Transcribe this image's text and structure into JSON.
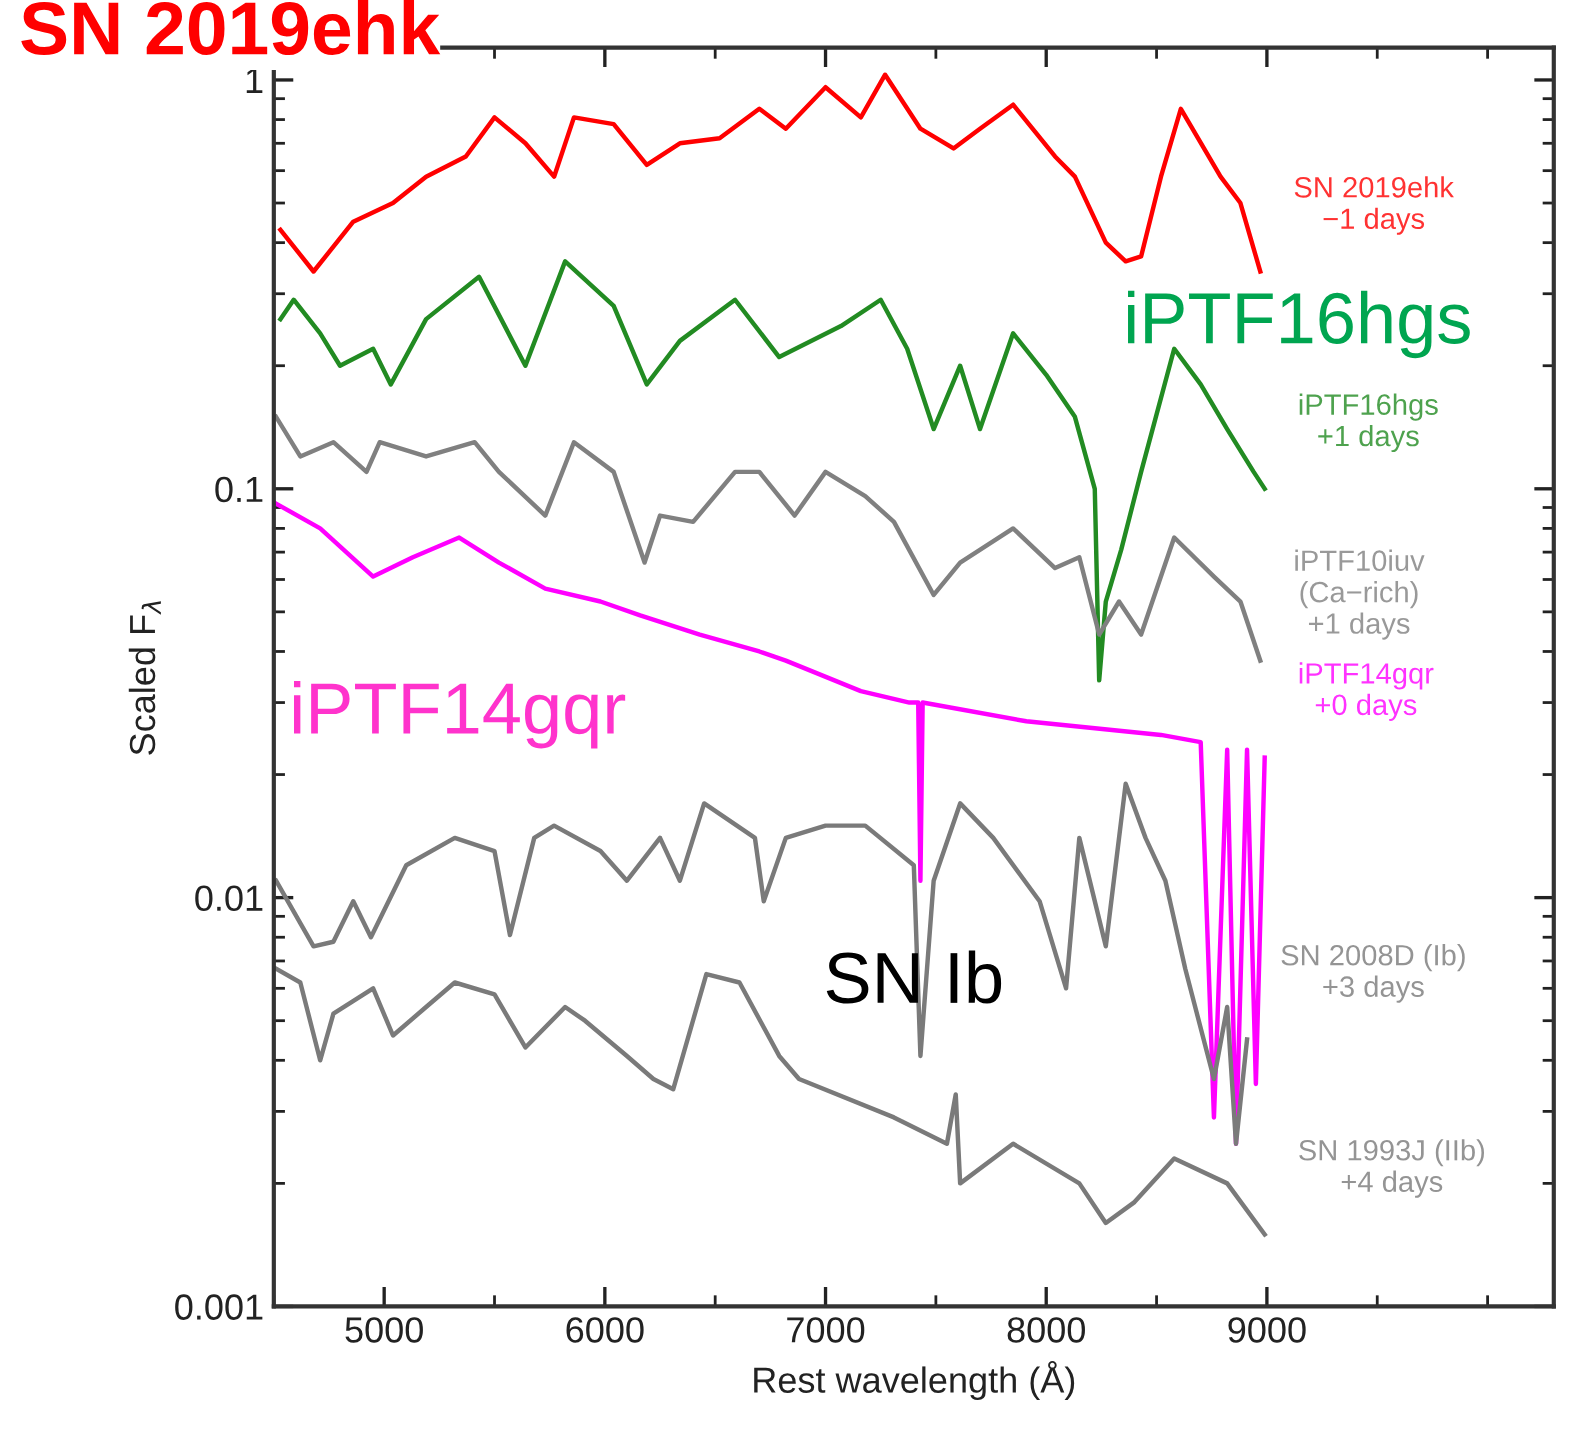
{
  "chart_data": {
    "type": "line",
    "title": "SN 2019ehk",
    "xlabel": "Rest wavelength (Å)",
    "ylabel": "Scaled F$_{λ}$",
    "log": "y",
    "xlim": [
      4500,
      10300
    ],
    "xticks": [
      5000,
      6000,
      7000,
      8000,
      9000
    ],
    "ylim": [
      0.001,
      1.2
    ],
    "yticks": [
      0.001,
      0.01,
      0.1,
      1
    ],
    "grid": false,
    "legend": false,
    "marker": "none",
    "line_style": "solid",
    "series": [
      {
        "name": "SN 2019ehk\n−1 days",
        "color": "#ff0000",
        "x": [
          4530,
          4680,
          4860,
          5040,
          5190,
          5370,
          5500,
          5640,
          5770,
          5860,
          6040,
          6190,
          6340,
          6520,
          6700,
          6820,
          7000,
          7160,
          7270,
          7430,
          7580,
          7700,
          7850,
          8040,
          8130,
          8270,
          8360,
          8430,
          8520,
          8610,
          8790,
          8880,
          8970
        ],
        "values": [
          0.43,
          0.34,
          0.45,
          0.5,
          0.58,
          0.65,
          0.81,
          0.7,
          0.58,
          0.81,
          0.78,
          0.62,
          0.7,
          0.72,
          0.85,
          0.76,
          0.96,
          0.81,
          1.03,
          0.76,
          0.68,
          0.76,
          0.87,
          0.65,
          0.58,
          0.4,
          0.36,
          0.37,
          0.58,
          0.85,
          0.58,
          0.5,
          0.34
        ]
      },
      {
        "name": "iPTF16hgs\n+1 days",
        "color": "#228b22",
        "x": [
          4530,
          4590,
          4710,
          4800,
          4950,
          5030,
          5190,
          5430,
          5640,
          5820,
          6040,
          6190,
          6340,
          6590,
          6790,
          7070,
          7250,
          7370,
          7490,
          7610,
          7700,
          7850,
          8000,
          8130,
          8220,
          8240,
          8270,
          8340,
          8430,
          8580,
          8700,
          8820,
          8940,
          8990
        ],
        "values": [
          0.26,
          0.29,
          0.24,
          0.2,
          0.22,
          0.18,
          0.26,
          0.33,
          0.2,
          0.36,
          0.28,
          0.18,
          0.23,
          0.29,
          0.21,
          0.25,
          0.29,
          0.22,
          0.14,
          0.2,
          0.14,
          0.24,
          0.19,
          0.15,
          0.1,
          0.034,
          0.053,
          0.071,
          0.11,
          0.22,
          0.18,
          0.14,
          0.11,
          0.1
        ]
      },
      {
        "name": "iPTF10iuv\n(Ca−rich)\n+1 days",
        "color": "#808080",
        "x": [
          4510,
          4620,
          4770,
          4920,
          4980,
          5190,
          5410,
          5520,
          5730,
          5860,
          6040,
          6180,
          6250,
          6400,
          6590,
          6700,
          6860,
          7000,
          7180,
          7310,
          7490,
          7610,
          7850,
          8040,
          8150,
          8240,
          8330,
          8430,
          8580,
          8760,
          8880,
          8970
        ],
        "values": [
          0.15,
          0.12,
          0.13,
          0.11,
          0.13,
          0.12,
          0.13,
          0.11,
          0.086,
          0.13,
          0.11,
          0.066,
          0.086,
          0.083,
          0.11,
          0.11,
          0.086,
          0.11,
          0.096,
          0.083,
          0.055,
          0.066,
          0.08,
          0.064,
          0.068,
          0.044,
          0.053,
          0.044,
          0.076,
          0.061,
          0.053,
          0.038
        ]
      },
      {
        "name": "iPTF14gqr\n+0 days",
        "color": "#ff00ff",
        "x": [
          4510,
          4710,
          4950,
          5130,
          5340,
          5520,
          5730,
          5980,
          6160,
          6430,
          6700,
          6820,
          7160,
          7380,
          7420,
          7430,
          7440,
          7910,
          8520,
          8700,
          8760,
          8820,
          8860,
          8910,
          8950,
          8990
        ],
        "values": [
          0.092,
          0.08,
          0.061,
          0.068,
          0.076,
          0.066,
          0.057,
          0.053,
          0.049,
          0.044,
          0.04,
          0.038,
          0.032,
          0.03,
          0.03,
          0.011,
          0.03,
          0.027,
          0.025,
          0.024,
          0.0029,
          0.023,
          0.0025,
          0.023,
          0.0035,
          0.022
        ]
      },
      {
        "name": "SN 2008D (Ib)\n+3 days",
        "color": "#7a7a7a",
        "x": [
          4510,
          4680,
          4770,
          4860,
          4940,
          5100,
          5320,
          5500,
          5570,
          5680,
          5770,
          5980,
          6100,
          6250,
          6340,
          6450,
          6680,
          6720,
          6820,
          7000,
          7180,
          7400,
          7430,
          7490,
          7610,
          7760,
          7970,
          8090,
          8150,
          8270,
          8360,
          8450,
          8540,
          8630,
          8760,
          8820,
          8860,
          8910
        ],
        "values": [
          0.011,
          0.0076,
          0.0078,
          0.0098,
          0.008,
          0.012,
          0.014,
          0.013,
          0.0081,
          0.014,
          0.015,
          0.013,
          0.011,
          0.014,
          0.011,
          0.017,
          0.014,
          0.0098,
          0.014,
          0.015,
          0.015,
          0.012,
          0.0041,
          0.011,
          0.017,
          0.014,
          0.0098,
          0.006,
          0.014,
          0.0076,
          0.019,
          0.014,
          0.011,
          0.0067,
          0.0036,
          0.0054,
          0.0025,
          0.0045
        ]
      },
      {
        "name": "SN 1993J (IIb)\n+4 days",
        "color": "#7a7a7a",
        "x": [
          4510,
          4620,
          4710,
          4770,
          4950,
          5040,
          5190,
          5320,
          5500,
          5640,
          5820,
          5910,
          6100,
          6220,
          6310,
          6460,
          6610,
          6790,
          6880,
          7310,
          7550,
          7590,
          7610,
          7850,
          8150,
          8270,
          8400,
          8580,
          8820,
          8990
        ],
        "values": [
          0.0067,
          0.0062,
          0.004,
          0.0052,
          0.006,
          0.0046,
          0.0054,
          0.0062,
          0.0058,
          0.0043,
          0.0054,
          0.005,
          0.0041,
          0.0036,
          0.0034,
          0.0065,
          0.0062,
          0.0041,
          0.0036,
          0.0029,
          0.0025,
          0.0033,
          0.002,
          0.0025,
          0.002,
          0.0016,
          0.0018,
          0.0023,
          0.002,
          0.0015
        ]
      }
    ],
    "annotations": [
      "iPTF16hgs",
      "iPTF14gqr",
      "SN Ib"
    ]
  }
}
